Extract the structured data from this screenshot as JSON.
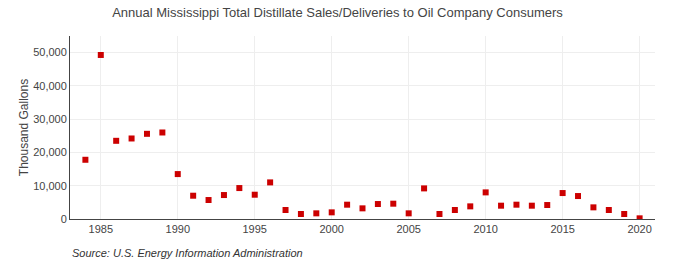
{
  "chart_data": {
    "type": "scatter",
    "title": "Annual Mississippi Total Distillate Sales/Deliveries to Oil Company Consumers",
    "ylabel": "Thousand Gallons",
    "annotations": [
      "Source: U.S. Energy Information Administration"
    ],
    "x": [
      1984,
      1985,
      1986,
      1987,
      1988,
      1989,
      1990,
      1991,
      1992,
      1993,
      1994,
      1995,
      1996,
      1997,
      1998,
      1999,
      2000,
      2001,
      2002,
      2003,
      2004,
      2005,
      2006,
      2007,
      2008,
      2009,
      2010,
      2011,
      2012,
      2013,
      2014,
      2015,
      2016,
      2017,
      2018,
      2019,
      2020
    ],
    "values": [
      17800,
      49300,
      23500,
      24200,
      25600,
      26000,
      13500,
      7000,
      5700,
      7200,
      9300,
      7300,
      11000,
      2700,
      1500,
      1700,
      2000,
      4300,
      3200,
      4500,
      4600,
      1700,
      9200,
      1500,
      2700,
      3800,
      8000,
      4000,
      4300,
      4000,
      4200,
      7800,
      6900,
      3500,
      2700,
      1500,
      200
    ],
    "color": "#cc0000",
    "marker": "square",
    "xlim": [
      1983,
      2021
    ],
    "xticks": [
      1985,
      1990,
      1995,
      2000,
      2005,
      2010,
      2015,
      2020
    ],
    "ylim": [
      0,
      55000
    ],
    "yticks": [
      0,
      {
        "value": 10000,
        "label": "10,000"
      },
      {
        "value": 20000,
        "label": "20,000"
      },
      {
        "value": 30000,
        "label": "30,000"
      },
      {
        "value": 40000,
        "label": "40,000"
      },
      {
        "value": 50000,
        "label": "50,000"
      }
    ],
    "grid": true
  }
}
